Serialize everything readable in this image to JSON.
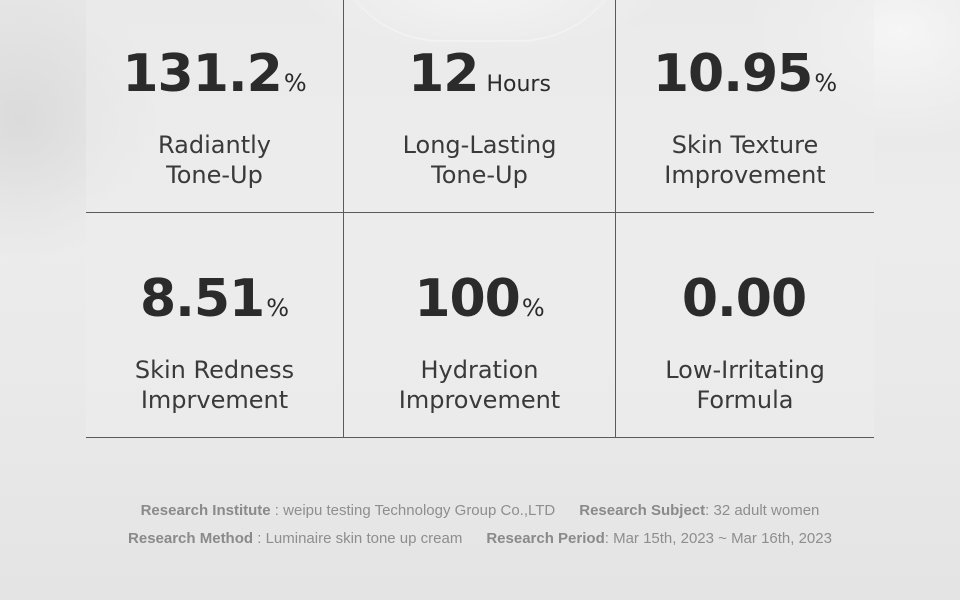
{
  "stats": [
    {
      "value": "131.2",
      "unit": "%",
      "label_line1": "Radiantly",
      "label_line2": "Tone-Up"
    },
    {
      "value": "12",
      "unit": "Hours",
      "label_line1": "Long-Lasting",
      "label_line2": "Tone-Up"
    },
    {
      "value": "10.95",
      "unit": "%",
      "label_line1": "Skin Texture",
      "label_line2": "Improvement"
    },
    {
      "value": "8.51",
      "unit": "%",
      "label_line1": "Skin Redness",
      "label_line2": "Imprvement"
    },
    {
      "value": "100",
      "unit": "%",
      "label_line1": "Hydration",
      "label_line2": "Improvement"
    },
    {
      "value": "0.00",
      "unit": "",
      "label_line1": "Low-Irritating",
      "label_line2": "Formula"
    }
  ],
  "research": {
    "institute_label": "Research Institute",
    "institute_value": " : weipu testing Technology Group Co.,LTD",
    "subject_label": "Research Subject",
    "subject_value": ": 32 adult women",
    "method_label": "Research Method",
    "method_value": " : Luminaire skin tone up cream",
    "period_label": "Research Period",
    "period_value": ": Mar 15th, 2023 ~ Mar 16th, 2023"
  }
}
